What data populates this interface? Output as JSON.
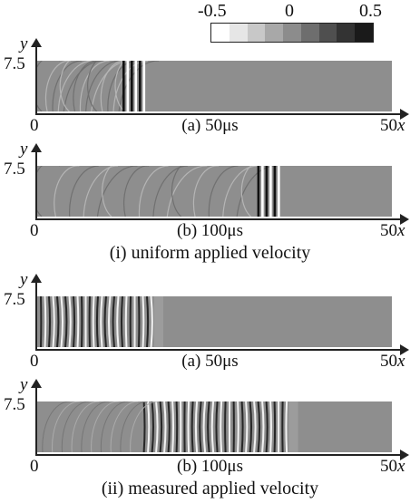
{
  "colorbar": {
    "labels": [
      "-0.5",
      "0",
      "0.5"
    ],
    "colors": [
      "#ffffff",
      "#e6e6e6",
      "#c8c8c8",
      "#a8a8a8",
      "#8c8c8c",
      "#6e6e6e",
      "#4f4f4f",
      "#333333",
      "#1a1a1a"
    ]
  },
  "axis": {
    "y_label": "y",
    "y_tick": "7.5",
    "x_zero": "0",
    "x_max": "50",
    "x_label": "x"
  },
  "groups": [
    {
      "caption": "(i) uniform applied velocity",
      "panels": [
        {
          "caption": "(a) 50μs",
          "front_fraction": 0.3
        },
        {
          "caption": "(b) 100μs",
          "front_fraction": 0.68
        }
      ]
    },
    {
      "caption": "(ii)  measured applied velocity",
      "panels": [
        {
          "caption": "(a) 50μs",
          "front_fraction": 0.33
        },
        {
          "caption": "(b) 100μs",
          "front_fraction": 0.71
        }
      ]
    }
  ],
  "colors": {
    "field_background": "#8e8e8e",
    "axis": "#222222"
  }
}
